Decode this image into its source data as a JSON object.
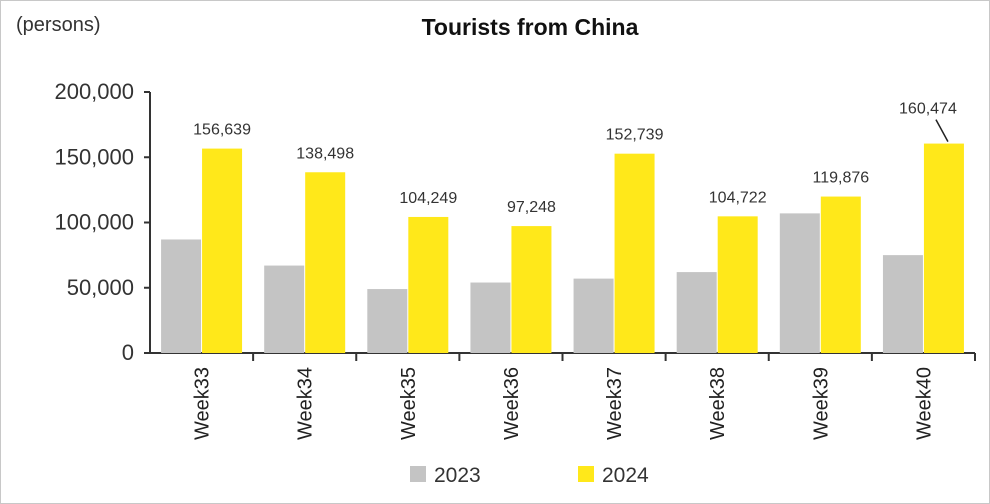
{
  "unit_label": "(persons)",
  "chart_data": {
    "type": "bar",
    "title": "Tourists from China",
    "categories": [
      "Week33",
      "Week34",
      "Week35",
      "Week36",
      "Week37",
      "Week38",
      "Week39",
      "Week40"
    ],
    "series": [
      {
        "name": "2023",
        "color": "#c4c4c4",
        "values": [
          87000,
          67000,
          49000,
          54000,
          57000,
          62000,
          107000,
          75000
        ]
      },
      {
        "name": "2024",
        "color": "#ffe81a",
        "values": [
          156639,
          138498,
          104249,
          97248,
          152739,
          104722,
          119876,
          160474
        ],
        "data_labels": [
          "156,639",
          "138,498",
          "104,249",
          "97,248",
          "152,739",
          "104,722",
          "119,876",
          "160,474"
        ]
      }
    ],
    "y_ticks": [
      "0",
      "50,000",
      "100,000",
      "150,000",
      "200,000"
    ],
    "ylim": [
      0,
      200000
    ],
    "legend": "bottom",
    "grid": false
  }
}
